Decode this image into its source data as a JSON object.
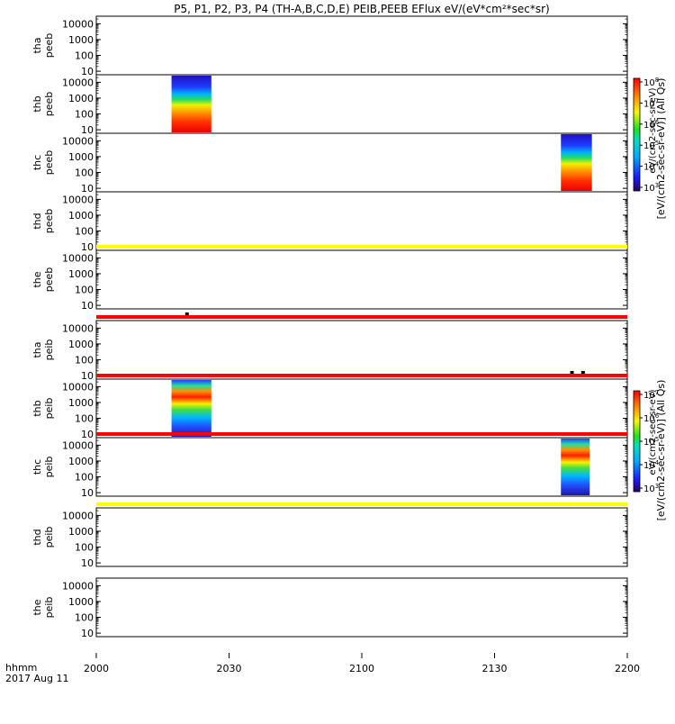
{
  "chart_data": {
    "type": "heatmap",
    "title": "P5, P1, P2, P3, P4 (TH-A,B,C,D,E) PEIB,PEEB EFlux eV/(eV*cm²*sec*sr)",
    "x_axis": {
      "unit_label": "hhmm",
      "date_label": "2017 Aug 11",
      "range_minutes": [
        0,
        120
      ],
      "ticks": [
        {
          "minute": 0,
          "label": "2000"
        },
        {
          "minute": 30,
          "label": "2030"
        },
        {
          "minute": 60,
          "label": "2100"
        },
        {
          "minute": 90,
          "label": "2130"
        },
        {
          "minute": 120,
          "label": "2200"
        }
      ]
    },
    "y_axis": {
      "scale": "log",
      "range": [
        6,
        30000
      ],
      "ticks": [
        {
          "value": 10,
          "label": "10"
        },
        {
          "value": 100,
          "label": "100"
        },
        {
          "value": 1000,
          "label": "1000"
        },
        {
          "value": 10000,
          "label": "10000"
        }
      ]
    },
    "panels": [
      {
        "probe": "tha",
        "product": "peeb",
        "blocks": []
      },
      {
        "probe": "thb",
        "product": "peeb",
        "blocks": [
          {
            "start_min": 17,
            "end_min": 26
          }
        ]
      },
      {
        "probe": "thc",
        "product": "peeb",
        "blocks": [
          {
            "start_min": 105,
            "end_min": 112
          }
        ]
      },
      {
        "probe": "thd",
        "product": "peeb",
        "blocks": []
      },
      {
        "probe": "the",
        "product": "peeb",
        "blocks": [],
        "bar_color": "#ffff00"
      },
      {
        "probe": "tha",
        "product": "peib",
        "blocks": [],
        "bar_color": "#ff0000",
        "marks_min": [
          20.5
        ]
      },
      {
        "probe": "thb",
        "product": "peib",
        "blocks": [
          {
            "start_min": 17,
            "end_min": 26
          }
        ],
        "bar_color": "#ff0000",
        "marks_min": [
          107.5,
          110
        ]
      },
      {
        "probe": "thc",
        "product": "peib",
        "blocks": [
          {
            "start_min": 105,
            "end_min": 111.5
          }
        ],
        "bar_color": "#ff0000"
      },
      {
        "probe": "thd",
        "product": "peib",
        "blocks": [],
        "bar_color": "#ffff00"
      },
      {
        "probe": "the",
        "product": "peib",
        "blocks": []
      }
    ],
    "colorbars": [
      {
        "label": "[eV/(cm2-sec-sr-eV)]",
        "label_suffix": "(All Qs)",
        "label_upper": "eV/(cm2-sec-sr-eV)",
        "tick_exponents": [
          3,
          4,
          5,
          6,
          7,
          8
        ],
        "tick_base": "10"
      },
      {
        "label": "[eV/(cm2-sec-sr-eV)]",
        "label_suffix": "(All Qs)",
        "label_upper": "eV/(cm2-sec-sr-eV)",
        "tick_exponents": [
          3,
          4,
          5,
          6,
          7
        ],
        "tick_base": "10"
      }
    ]
  }
}
